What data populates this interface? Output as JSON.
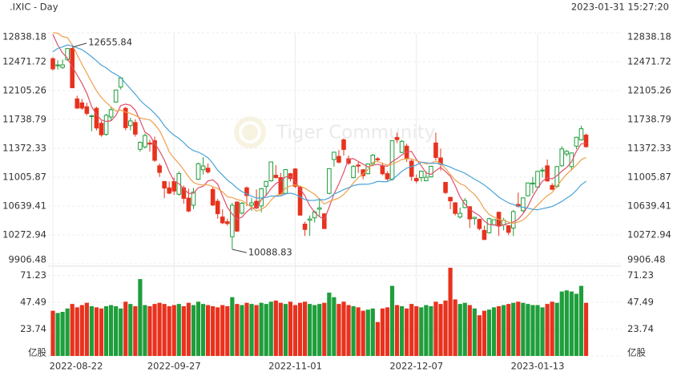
{
  "chart_data": {
    "type": "candlestick",
    "title": ".IXIC - Day",
    "timestamp": "2023-01-31 15:27:20",
    "watermark": "Tiger Community",
    "up_color": "#1f9e3c",
    "down_color": "#e8321e",
    "x": [
      "2022-08-22",
      null,
      null,
      null,
      null,
      null,
      null,
      null,
      null,
      null,
      null,
      null,
      null,
      null,
      null,
      null,
      null,
      null,
      null,
      null,
      null,
      null,
      null,
      null,
      null,
      "2022-09-27",
      null,
      null,
      null,
      null,
      null,
      null,
      null,
      null,
      null,
      null,
      null,
      null,
      null,
      null,
      null,
      null,
      null,
      null,
      null,
      null,
      null,
      null,
      null,
      null,
      "2022-11-01",
      null,
      null,
      null,
      null,
      null,
      null,
      null,
      null,
      null,
      null,
      null,
      null,
      null,
      null,
      null,
      null,
      null,
      null,
      null,
      null,
      null,
      null,
      null,
      null,
      "2022-12-07",
      null,
      null,
      null,
      null,
      null,
      null,
      null,
      null,
      null,
      null,
      null,
      null,
      null,
      null,
      null,
      null,
      null,
      null,
      null,
      null,
      null,
      null,
      null,
      null,
      "2023-01-13",
      null,
      null,
      null,
      null,
      null,
      null,
      null,
      null,
      null,
      null
    ],
    "ohlc": [
      [
        12510,
        12530,
        12360,
        12381
      ],
      [
        12420,
        12490,
        12370,
        12431
      ],
      [
        12400,
        12500,
        12380,
        12431
      ],
      [
        12500,
        12640,
        12480,
        12639
      ],
      [
        12640,
        12655.84,
        12135,
        12141
      ],
      [
        12000,
        12040,
        11870,
        11884
      ],
      [
        11950,
        12000,
        11860,
        11883
      ],
      [
        11900,
        11950,
        11790,
        11816
      ],
      [
        11780,
        11800,
        11590,
        11785
      ],
      [
        11880,
        11900,
        11600,
        11630
      ],
      [
        11690,
        11720,
        11520,
        11544
      ],
      [
        11550,
        11810,
        11530,
        11791
      ],
      [
        11770,
        11900,
        11720,
        11862
      ],
      [
        11960,
        12120,
        11950,
        12112
      ],
      [
        12150,
        12270,
        12120,
        12266
      ],
      [
        11880,
        11900,
        11600,
        11634
      ],
      [
        11660,
        11760,
        11600,
        11719
      ],
      [
        11700,
        11740,
        11520,
        11552
      ],
      [
        11360,
        11460,
        11330,
        11448
      ],
      [
        11390,
        11560,
        11370,
        11535
      ],
      [
        11440,
        11480,
        11330,
        11425
      ],
      [
        11470,
        11520,
        11200,
        11220
      ],
      [
        11150,
        11180,
        11010,
        11066
      ],
      [
        10950,
        10960,
        10740,
        10868
      ],
      [
        10870,
        10950,
        10790,
        10803
      ],
      [
        10950,
        11000,
        10780,
        10829
      ],
      [
        10790,
        11080,
        10770,
        11051
      ],
      [
        10870,
        10900,
        10670,
        10737
      ],
      [
        10740,
        10860,
        10560,
        10576
      ],
      [
        10650,
        10870,
        10600,
        10815
      ],
      [
        10980,
        11190,
        10970,
        11176
      ],
      [
        11100,
        11260,
        11040,
        11148
      ],
      [
        11120,
        11180,
        11050,
        11073
      ],
      [
        10850,
        10880,
        10640,
        10652
      ],
      [
        10700,
        10730,
        10480,
        10542
      ],
      [
        10500,
        10600,
        10410,
        10426
      ],
      [
        10440,
        10480,
        10390,
        10417
      ],
      [
        10250,
        10680,
        10088.83,
        10649
      ],
      [
        10690,
        10700,
        10310,
        10321
      ],
      [
        10550,
        10690,
        10530,
        10675
      ],
      [
        10870,
        10890,
        10640,
        10772
      ],
      [
        10650,
        10740,
        10580,
        10680
      ],
      [
        10700,
        10850,
        10600,
        10614
      ],
      [
        10640,
        10870,
        10560,
        10859
      ],
      [
        10890,
        10960,
        10770,
        10952
      ],
      [
        10960,
        11200,
        10950,
        11199
      ],
      [
        11030,
        11160,
        10990,
        11000
      ],
      [
        11000,
        11060,
        10780,
        10792
      ],
      [
        10800,
        11110,
        10790,
        11102
      ],
      [
        11050,
        11060,
        10950,
        10988
      ],
      [
        11110,
        11120,
        10870,
        10890
      ],
      [
        10880,
        10890,
        10520,
        10524
      ],
      [
        10410,
        10440,
        10260,
        10342
      ],
      [
        10460,
        10520,
        10260,
        10475
      ],
      [
        10490,
        10580,
        10430,
        10564
      ],
      [
        10600,
        10740,
        10500,
        10616
      ],
      [
        10540,
        10550,
        10350,
        10353
      ],
      [
        10800,
        11120,
        10790,
        11114
      ],
      [
        11230,
        11330,
        11140,
        11323
      ],
      [
        11270,
        11350,
        11180,
        11196
      ],
      [
        11480,
        11500,
        11280,
        11358
      ],
      [
        11240,
        11280,
        11160,
        11184
      ],
      [
        11000,
        11160,
        10990,
        11144
      ],
      [
        11160,
        11200,
        11060,
        11146
      ],
      [
        11100,
        11110,
        10980,
        11025
      ],
      [
        11050,
        11180,
        11040,
        11174
      ],
      [
        11180,
        11300,
        11160,
        11286
      ],
      [
        11240,
        11260,
        11200,
        11226
      ],
      [
        11150,
        11190,
        11030,
        11049
      ],
      [
        11050,
        11080,
        10960,
        10984
      ],
      [
        10980,
        11470,
        10960,
        11468
      ],
      [
        11510,
        11570,
        11440,
        11482
      ],
      [
        11320,
        11480,
        11310,
        11461
      ],
      [
        11400,
        11430,
        11200,
        11240
      ],
      [
        11210,
        11230,
        10960,
        11015
      ],
      [
        10990,
        11040,
        10930,
        10959
      ],
      [
        11000,
        11090,
        10950,
        11082
      ],
      [
        10960,
        11080,
        10960,
        11005
      ],
      [
        11010,
        11150,
        11000,
        11144
      ],
      [
        11440,
        11570,
        11220,
        11256
      ],
      [
        11250,
        11370,
        11090,
        11171
      ],
      [
        10940,
        10940,
        10790,
        10811
      ],
      [
        10750,
        10750,
        10600,
        10705
      ],
      [
        10680,
        10690,
        10520,
        10546
      ],
      [
        10500,
        10620,
        10480,
        10547
      ],
      [
        10620,
        10740,
        10610,
        10710
      ],
      [
        10630,
        10640,
        10360,
        10476
      ],
      [
        10480,
        10500,
        10400,
        10497
      ],
      [
        10470,
        10480,
        10330,
        10354
      ],
      [
        10330,
        10390,
        10210,
        10214
      ],
      [
        10300,
        10490,
        10290,
        10479
      ],
      [
        10400,
        10470,
        10390,
        10466
      ],
      [
        10560,
        10570,
        10260,
        10386
      ],
      [
        10400,
        10490,
        10330,
        10459
      ],
      [
        10390,
        10390,
        10270,
        10305
      ],
      [
        10360,
        10590,
        10260,
        10569
      ],
      [
        10660,
        10810,
        10620,
        10636
      ],
      [
        10580,
        10750,
        10560,
        10743
      ],
      [
        10770,
        10940,
        10760,
        10932
      ],
      [
        10920,
        11010,
        10800,
        10931
      ],
      [
        10880,
        11090,
        10870,
        11079
      ],
      [
        11090,
        11130,
        11000,
        11095
      ],
      [
        11150,
        11230,
        10950,
        10957
      ],
      [
        10900,
        10930,
        10840,
        10852
      ],
      [
        10890,
        11150,
        10870,
        11140
      ],
      [
        11150,
        11400,
        11140,
        11364
      ],
      [
        11300,
        11350,
        11270,
        11334
      ],
      [
        11140,
        11320,
        11090,
        11313
      ],
      [
        11400,
        11520,
        11360,
        11512
      ],
      [
        11480,
        11660,
        11470,
        11621
      ],
      [
        11540,
        11560,
        11380,
        11393
      ]
    ],
    "lines": [
      {
        "color": "#e0506a",
        "values": [
          12819,
          12684,
          12583,
          12517,
          12405,
          12305,
          12196,
          12073,
          11902,
          11800,
          11732,
          11713,
          11722,
          11788,
          11915,
          11933,
          11919,
          11857,
          11724,
          11578,
          11536,
          11436,
          11339,
          11223,
          11076,
          10957,
          10923,
          10858,
          10799,
          10802,
          10871,
          10890,
          10958,
          10973,
          10918,
          10768,
          10622,
          10537,
          10471,
          10498,
          10567,
          10619,
          10612,
          10720,
          10775,
          10861,
          10925,
          10960,
          11009,
          11016,
          10954,
          10859,
          10769,
          10644,
          10559,
          10504,
          10470,
          10624,
          10794,
          10920,
          11069,
          11235,
          11241,
          11206,
          11171,
          11135,
          11155,
          11171,
          11152,
          11144,
          11203,
          11242,
          11289,
          11327,
          11333,
          11231,
          11151,
          11060,
          11041,
          11089,
          11132,
          11077,
          11017,
          10898,
          10756,
          10664,
          10597,
          10555,
          10517,
          10450,
          10404,
          10402,
          10380,
          10401,
          10419,
          10437,
          10471,
          10542,
          10637,
          10762,
          10864,
          10956,
          10999,
          10983,
          11025,
          11082,
          11129,
          11201,
          11333,
          11429,
          11435
        ]
      },
      {
        "color": "#f0a04b",
        "values": [
          12840,
          12833,
          12791,
          12777,
          12686,
          12562,
          12440,
          12328,
          12210,
          12102,
          12018,
          11954,
          11898,
          11845,
          11857,
          11832,
          11816,
          11790,
          11756,
          11746,
          11734,
          11677,
          11598,
          11473,
          11327,
          11247,
          11180,
          11098,
          11011,
          10939,
          10914,
          10907,
          10908,
          10886,
          10860,
          10820,
          10756,
          10747,
          10722,
          10708,
          10668,
          10621,
          10575,
          10596,
          10637,
          10714,
          10772,
          10786,
          10865,
          10896,
          10908,
          10892,
          10865,
          10826,
          10788,
          10729,
          10665,
          10697,
          10719,
          10740,
          10787,
          10853,
          10933,
          11000,
          11046,
          11102,
          11195,
          11206,
          11179,
          11158,
          11169,
          11198,
          11230,
          11240,
          11239,
          11217,
          11197,
          11175,
          11184,
          11211,
          11182,
          11114,
          11039,
          10969,
          10923,
          10898,
          10837,
          10786,
          10707,
          10603,
          10534,
          10499,
          10468,
          10459,
          10435,
          10421,
          10437,
          10461,
          10519,
          10591,
          10651,
          10714,
          10771,
          10810,
          10893,
          10973,
          11043,
          11100,
          11158,
          11227,
          11258
        ]
      },
      {
        "color": "#4ba3d8",
        "values": [
          12598,
          12641,
          12661,
          12685,
          12672,
          12648,
          12625,
          12582,
          12535,
          12484,
          12429,
          12394,
          12344,
          12311,
          12272,
          12197,
          12128,
          12059,
          11983,
          11924,
          11876,
          11816,
          11748,
          11659,
          11592,
          11539,
          11498,
          11444,
          11383,
          11343,
          11324,
          11292,
          11253,
          11180,
          11093,
          11033,
          10968,
          10923,
          10866,
          10823,
          10791,
          10764,
          10741,
          10741,
          10748,
          10767,
          10764,
          10767,
          10793,
          10802,
          10788,
          10756,
          10720,
          10711,
          10712,
          10722,
          10718,
          10742,
          10792,
          10818,
          10847,
          10872,
          10899,
          10913,
          10917,
          10916,
          10930,
          10952,
          10949,
          10949,
          10978,
          11025,
          11081,
          11120,
          11142,
          11159,
          11196,
          11190,
          11181,
          11184,
          11175,
          11156,
          11134,
          11104,
          11081,
          11057,
          11017,
          10980,
          10946,
          10907,
          10858,
          10807,
          10753,
          10714,
          10679,
          10659,
          10637,
          10624,
          10613,
          10597,
          10592,
          10606,
          10619,
          10634,
          10664,
          10697,
          10740,
          10780,
          10838,
          10909,
          10954
        ]
      }
    ],
    "ylim": [
      9906.48,
      12838.18
    ],
    "yticks": [
      12838.18,
      12471.72,
      12105.26,
      11738.79,
      11372.33,
      11005.87,
      10639.41,
      10272.94,
      9906.48
    ],
    "volume": {
      "ylim": [
        0,
        78
      ],
      "yticks": [
        {
          "value": 0,
          "label": "亿股"
        },
        23.74,
        47.49,
        71.23
      ],
      "values": [
        40,
        38,
        39,
        42,
        46,
        43,
        45,
        47,
        44,
        43,
        42,
        44,
        45,
        44,
        42,
        48,
        46,
        44,
        68,
        45,
        44,
        46,
        47,
        46,
        44,
        45,
        46,
        44,
        47,
        45,
        48,
        46,
        45,
        44,
        43,
        45,
        44,
        52,
        46,
        45,
        47,
        46,
        45,
        47,
        46,
        48,
        49,
        47,
        46,
        48,
        45,
        47,
        48,
        46,
        45,
        46,
        47,
        56,
        52,
        46,
        48,
        45,
        44,
        43,
        40,
        41,
        42,
        30,
        42,
        43,
        62,
        45,
        44,
        42,
        46,
        44,
        43,
        45,
        44,
        48,
        46,
        49,
        78,
        50,
        46,
        47,
        45,
        42,
        36,
        40,
        41,
        43,
        44,
        45,
        46,
        47,
        48,
        47,
        46,
        45,
        45,
        43,
        46,
        48,
        47,
        57,
        58,
        57,
        55,
        62,
        47
      ]
    }
  }
}
